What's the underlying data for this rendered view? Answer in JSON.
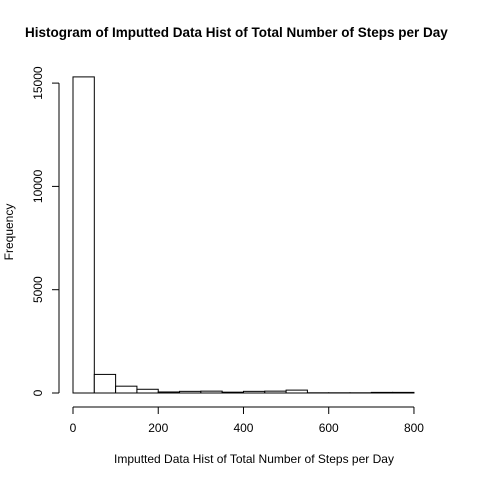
{
  "chart_data": {
    "type": "bar",
    "title": "Histogram of Imputted Data Hist of Total Number of Steps per Day",
    "xlabel": "Imputted Data Hist of Total Number of Steps per Day",
    "ylabel": "Frequency",
    "bins": [
      {
        "from": 0,
        "to": 50,
        "count": 15300
      },
      {
        "from": 50,
        "to": 100,
        "count": 900
      },
      {
        "from": 100,
        "to": 150,
        "count": 330
      },
      {
        "from": 150,
        "to": 200,
        "count": 180
      },
      {
        "from": 200,
        "to": 250,
        "count": 50
      },
      {
        "from": 250,
        "to": 300,
        "count": 80
      },
      {
        "from": 300,
        "to": 350,
        "count": 90
      },
      {
        "from": 350,
        "to": 400,
        "count": 40
      },
      {
        "from": 400,
        "to": 450,
        "count": 80
      },
      {
        "from": 450,
        "to": 500,
        "count": 90
      },
      {
        "from": 500,
        "to": 550,
        "count": 140
      },
      {
        "from": 550,
        "to": 600,
        "count": 10
      },
      {
        "from": 600,
        "to": 650,
        "count": 10
      },
      {
        "from": 650,
        "to": 700,
        "count": 10
      },
      {
        "from": 700,
        "to": 750,
        "count": 30
      },
      {
        "from": 750,
        "to": 800,
        "count": 30
      }
    ],
    "x_ticks": [
      "0",
      "200",
      "400",
      "600",
      "800"
    ],
    "y_ticks": [
      "0",
      "5000",
      "10000",
      "15000"
    ],
    "xlim": [
      0,
      850
    ],
    "ylim": [
      0,
      16000
    ],
    "grid": false,
    "legend": "none"
  }
}
